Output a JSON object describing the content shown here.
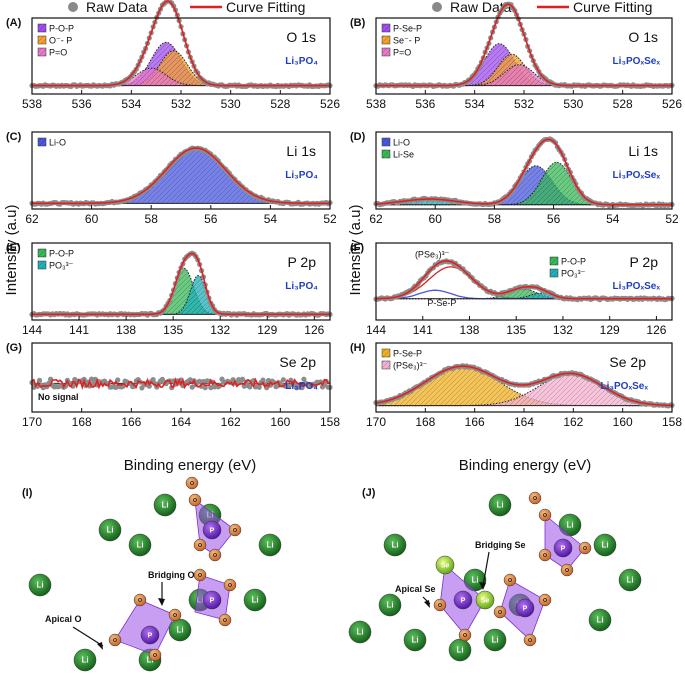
{
  "legend": {
    "raw": "Raw Data",
    "fit": "Curve Fitting"
  },
  "ylabel": "Intensity (a.u)",
  "xlabel": "Binding energy (eV)",
  "colors": {
    "raw": "#8a8a8a",
    "fit": "#e02020",
    "purple": "#a04cf0",
    "orange": "#f5a030",
    "pink": "#e878c8",
    "blue": "#4858e0",
    "green": "#38b858",
    "teal": "#20b0b8",
    "yellow": "#f0b020",
    "lightpink": "#f4b0d0"
  },
  "chart_data": [
    {
      "id": "A",
      "letter": "(A)",
      "type": "line",
      "title": "O 1s",
      "compound": "Li₃PO₄",
      "xlim": [
        538,
        526
      ],
      "xticks": [
        538,
        536,
        534,
        532,
        530,
        528,
        526
      ],
      "baseline": 0.12,
      "peaks": [
        {
          "label": "P-O-P",
          "center": 532.6,
          "sigma": 0.6,
          "amp": 0.62,
          "color": "purple"
        },
        {
          "label": "O⁻- P",
          "center": 532.3,
          "sigma": 0.55,
          "amp": 0.5,
          "color": "orange"
        },
        {
          "label": "P=O",
          "center": 533.2,
          "sigma": 0.6,
          "amp": 0.25,
          "color": "pink"
        }
      ]
    },
    {
      "id": "B",
      "letter": "(B)",
      "type": "line",
      "title": "O 1s",
      "compound": "Li₃POₓSeₓ",
      "xlim": [
        538,
        526
      ],
      "xticks": [
        538,
        536,
        534,
        532,
        530,
        528,
        526
      ],
      "baseline": 0.12,
      "peaks": [
        {
          "label": "P-Se-P",
          "center": 533.0,
          "sigma": 0.6,
          "amp": 0.6,
          "color": "purple"
        },
        {
          "label": "Se⁻- P",
          "center": 532.5,
          "sigma": 0.55,
          "amp": 0.45,
          "color": "orange"
        },
        {
          "label": "P=O",
          "center": 532.2,
          "sigma": 0.6,
          "amp": 0.3,
          "color": "pink"
        }
      ]
    },
    {
      "id": "C",
      "letter": "(C)",
      "type": "line",
      "title": "Li 1s",
      "compound": "Li₃PO₄",
      "xlim": [
        62,
        52
      ],
      "xticks": [
        62,
        60,
        58,
        56,
        54,
        52
      ],
      "baseline": 0.08,
      "peaks": [
        {
          "label": "Li-O",
          "center": 56.5,
          "sigma": 1.0,
          "amp": 0.78,
          "color": "blue"
        }
      ]
    },
    {
      "id": "D",
      "letter": "(D)",
      "type": "line",
      "title": "Li 1s",
      "compound": "Li₃POₓSeₓ",
      "xlim": [
        62,
        52
      ],
      "xticks": [
        62,
        60,
        58,
        56,
        54,
        52
      ],
      "baseline": 0.06,
      "peaks": [
        {
          "label": "Li-O",
          "center": 56.6,
          "sigma": 0.55,
          "amp": 0.55,
          "color": "blue"
        },
        {
          "label": "Li-Se",
          "center": 55.9,
          "sigma": 0.5,
          "amp": 0.6,
          "color": "green"
        },
        {
          "label": "",
          "center": 60.2,
          "sigma": 0.9,
          "amp": 0.08,
          "color": "teal"
        }
      ]
    },
    {
      "id": "E",
      "letter": "(E)",
      "type": "line",
      "title": "P 2p",
      "compound": "Li₃PO₄",
      "xlim": [
        144,
        125
      ],
      "xticks": [
        144,
        141,
        138,
        135,
        132,
        129,
        126
      ],
      "baseline": 0.08,
      "peaks": [
        {
          "label": "P-O-P",
          "center": 134.3,
          "sigma": 0.6,
          "amp": 0.65,
          "color": "green"
        },
        {
          "label": "PO₃³⁻",
          "center": 133.4,
          "sigma": 0.5,
          "amp": 0.55,
          "color": "teal"
        }
      ]
    },
    {
      "id": "F",
      "letter": "(F)",
      "type": "line",
      "title": "P 2p",
      "compound": "Li₃POₓSeₓ",
      "xlim": [
        144,
        125
      ],
      "xticks": [
        144,
        141,
        138,
        135,
        132,
        129,
        126
      ],
      "baseline": 0.3,
      "peaks": [
        {
          "label": "(PSe₃)³⁻",
          "center": 139.2,
          "sigma": 1.4,
          "amp": 0.45,
          "color": "fit"
        },
        {
          "label": "P-O-P",
          "center": 134.6,
          "sigma": 0.9,
          "amp": 0.14,
          "color": "green"
        },
        {
          "label": "PO₃³⁻",
          "center": 133.4,
          "sigma": 0.7,
          "amp": 0.08,
          "color": "teal"
        },
        {
          "label": "P-Se-P",
          "center": 140.2,
          "sigma": 1.0,
          "amp": 0.12,
          "color": "blue"
        }
      ]
    },
    {
      "id": "G",
      "letter": "(G)",
      "type": "line",
      "title": "Se 2p",
      "compound": "Li₃PO₄",
      "xlim": [
        170,
        158
      ],
      "xticks": [
        170,
        168,
        166,
        164,
        162,
        160,
        158
      ],
      "baseline": 0.45,
      "note": "No signal",
      "peaks": []
    },
    {
      "id": "H",
      "letter": "(H)",
      "type": "line",
      "title": "Se 2p",
      "compound": "Li₃POₓSeₓ",
      "xlim": [
        170,
        158
      ],
      "xticks": [
        170,
        168,
        166,
        164,
        162,
        160,
        158
      ],
      "baseline": 0.1,
      "peaks": [
        {
          "label": "P-Se-P",
          "center": 166.5,
          "sigma": 1.5,
          "amp": 0.62,
          "color": "yellow"
        },
        {
          "label": "(PSe₃)³⁻",
          "center": 162.1,
          "sigma": 1.3,
          "amp": 0.5,
          "color": "lightpink"
        }
      ]
    }
  ],
  "structures": {
    "I": {
      "letter": "(I)",
      "apical": "Apical O",
      "bridging": "Bridging O",
      "atom_li": "Li",
      "atom_p": "P"
    },
    "J": {
      "letter": "(J)",
      "apical": "Apical Se",
      "bridging": "Bridging Se",
      "atom_li": "Li",
      "atom_p": "P",
      "atom_se": "Se"
    }
  }
}
